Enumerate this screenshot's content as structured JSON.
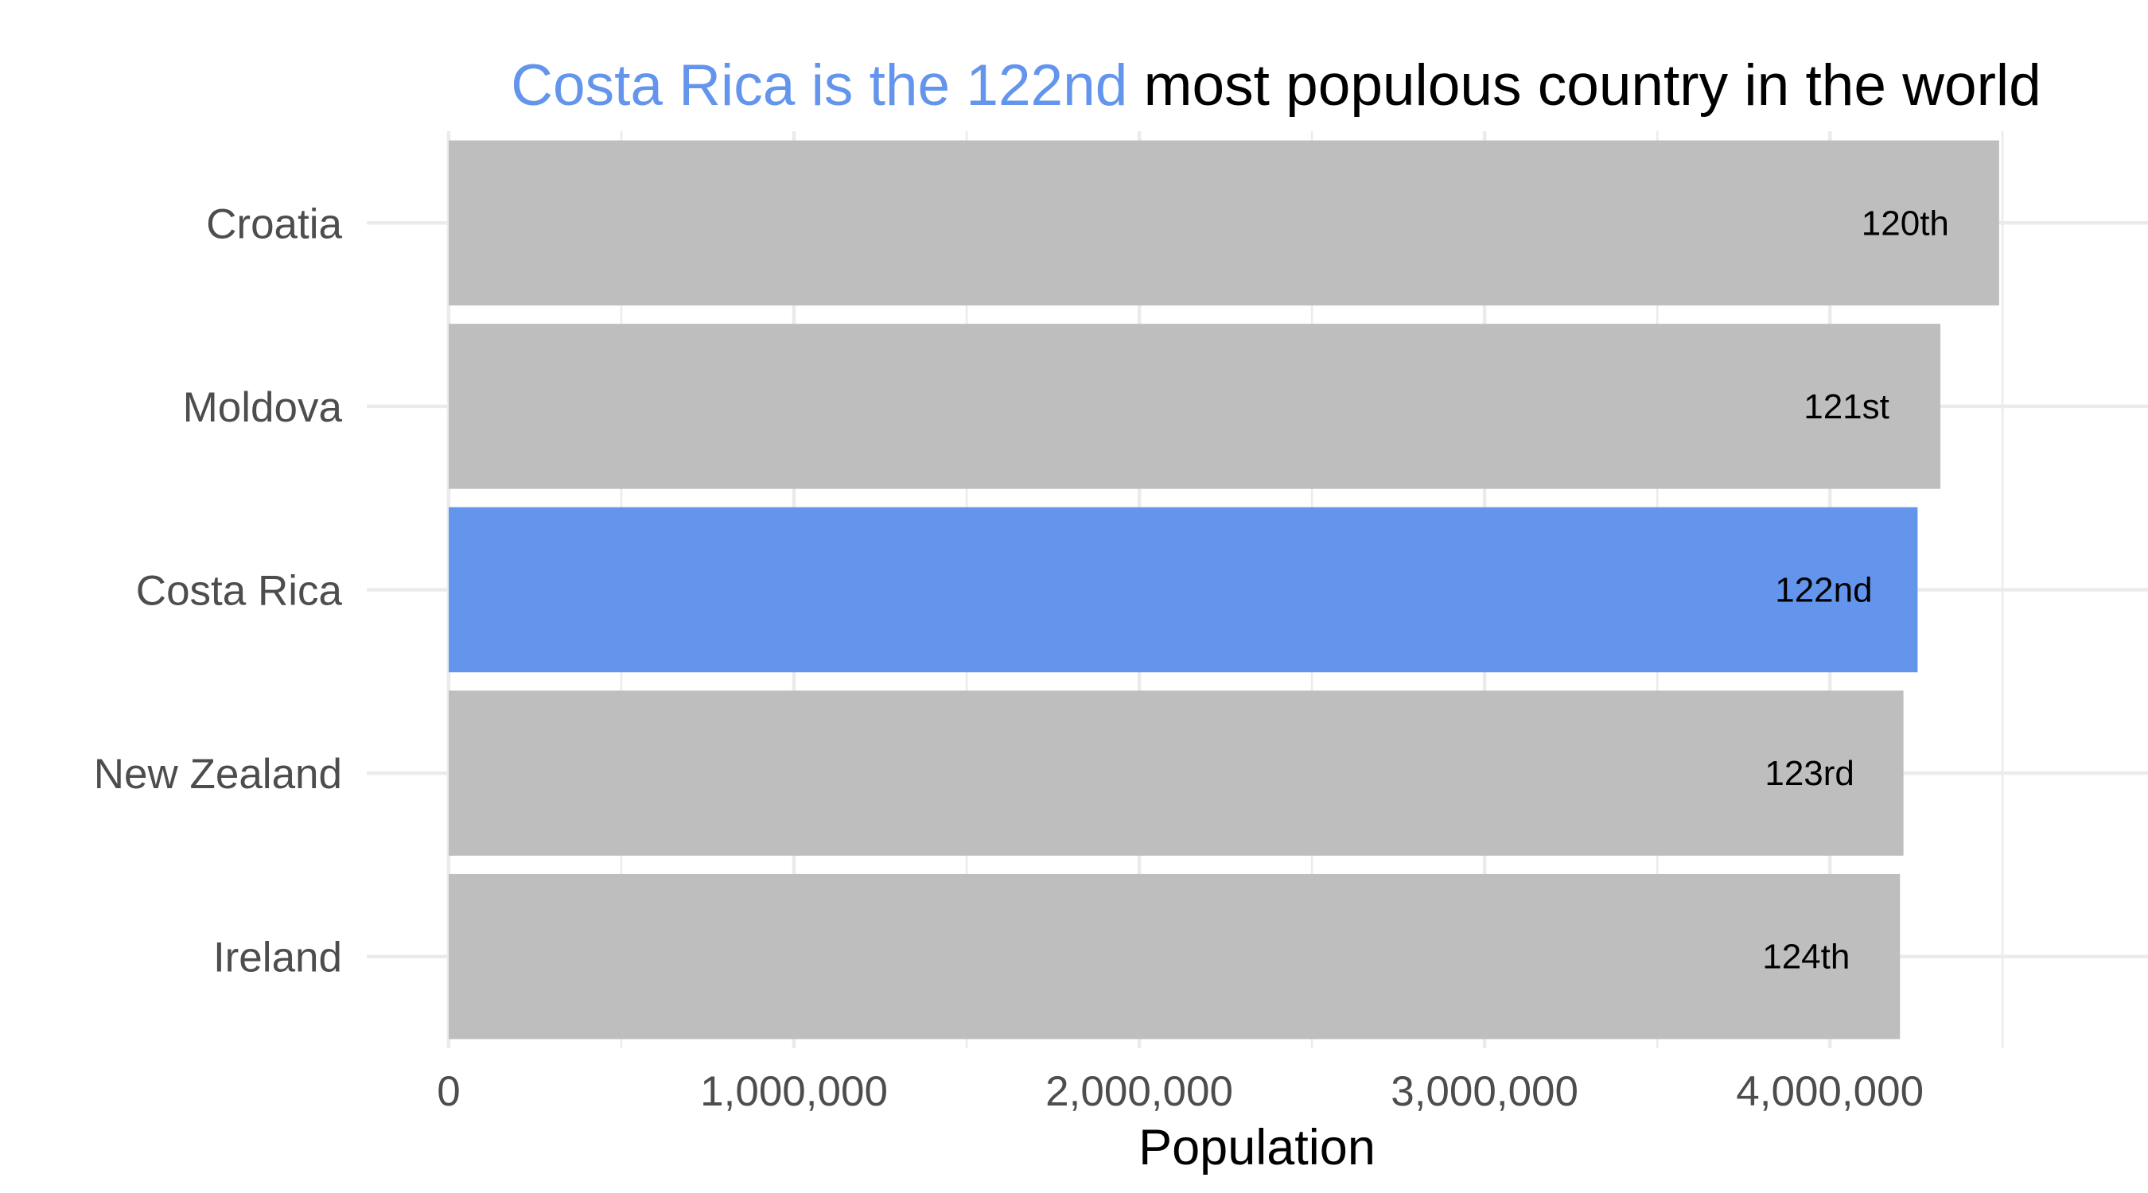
{
  "chart_data": {
    "type": "bar",
    "orientation": "horizontal",
    "title": {
      "highlight": "Costa Rica is the 122nd",
      "rest": "most populous country in the world"
    },
    "categories": [
      "Croatia",
      "Moldova",
      "Costa Rica",
      "New Zealand",
      "Ireland"
    ],
    "values": [
      4490000,
      4320000,
      4254000,
      4213000,
      4203000
    ],
    "labels": [
      "120th",
      "121st",
      "122nd",
      "123rd",
      "124th"
    ],
    "highlight_category": "Costa Rica",
    "colors": {
      "highlight": "#6495ED",
      "default": "#BEBEBE"
    },
    "xlabel": "Population",
    "ylabel": "",
    "xlim": [
      0,
      4700000
    ],
    "x_ticks": [
      0,
      1000000,
      2000000,
      3000000,
      4000000
    ],
    "x_tick_labels": [
      "0",
      "1,000,000",
      "2,000,000",
      "3,000,000",
      "4,000,000"
    ],
    "grid": true,
    "legend": "none"
  }
}
